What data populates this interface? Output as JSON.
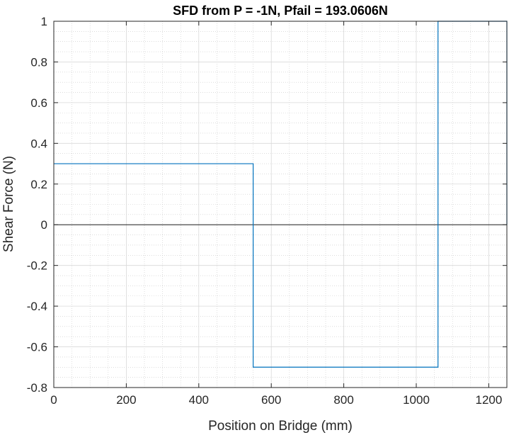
{
  "chart_data": {
    "type": "line",
    "title": "SFD from P = -1N, Pfail = 193.0606N",
    "xlabel": "Position on Bridge (mm)",
    "ylabel": "Shear Force (N)",
    "xlim": [
      0,
      1250
    ],
    "ylim": [
      -0.8,
      1
    ],
    "xticks": [
      0,
      200,
      400,
      600,
      800,
      1000,
      1200
    ],
    "xtick_labels": [
      "0",
      "200",
      "400",
      "600",
      "800",
      "1000",
      "1200"
    ],
    "yticks": [
      -0.8,
      -0.6,
      -0.4,
      -0.2,
      0,
      0.2,
      0.4,
      0.6,
      0.8,
      1
    ],
    "ytick_labels": [
      "-0.8",
      "-0.6",
      "-0.4",
      "-0.2",
      "0",
      "0.2",
      "0.4",
      "0.6",
      "0.8",
      "1"
    ],
    "grid": true,
    "minor_grid": true,
    "zero_line": true,
    "series": [
      {
        "name": "SFD",
        "color": "#0072BD",
        "x": [
          0,
          550,
          550,
          1060,
          1060,
          1250,
          1250
        ],
        "y": [
          0.3,
          0.3,
          -0.7,
          -0.7,
          1,
          1,
          0
        ]
      }
    ]
  }
}
